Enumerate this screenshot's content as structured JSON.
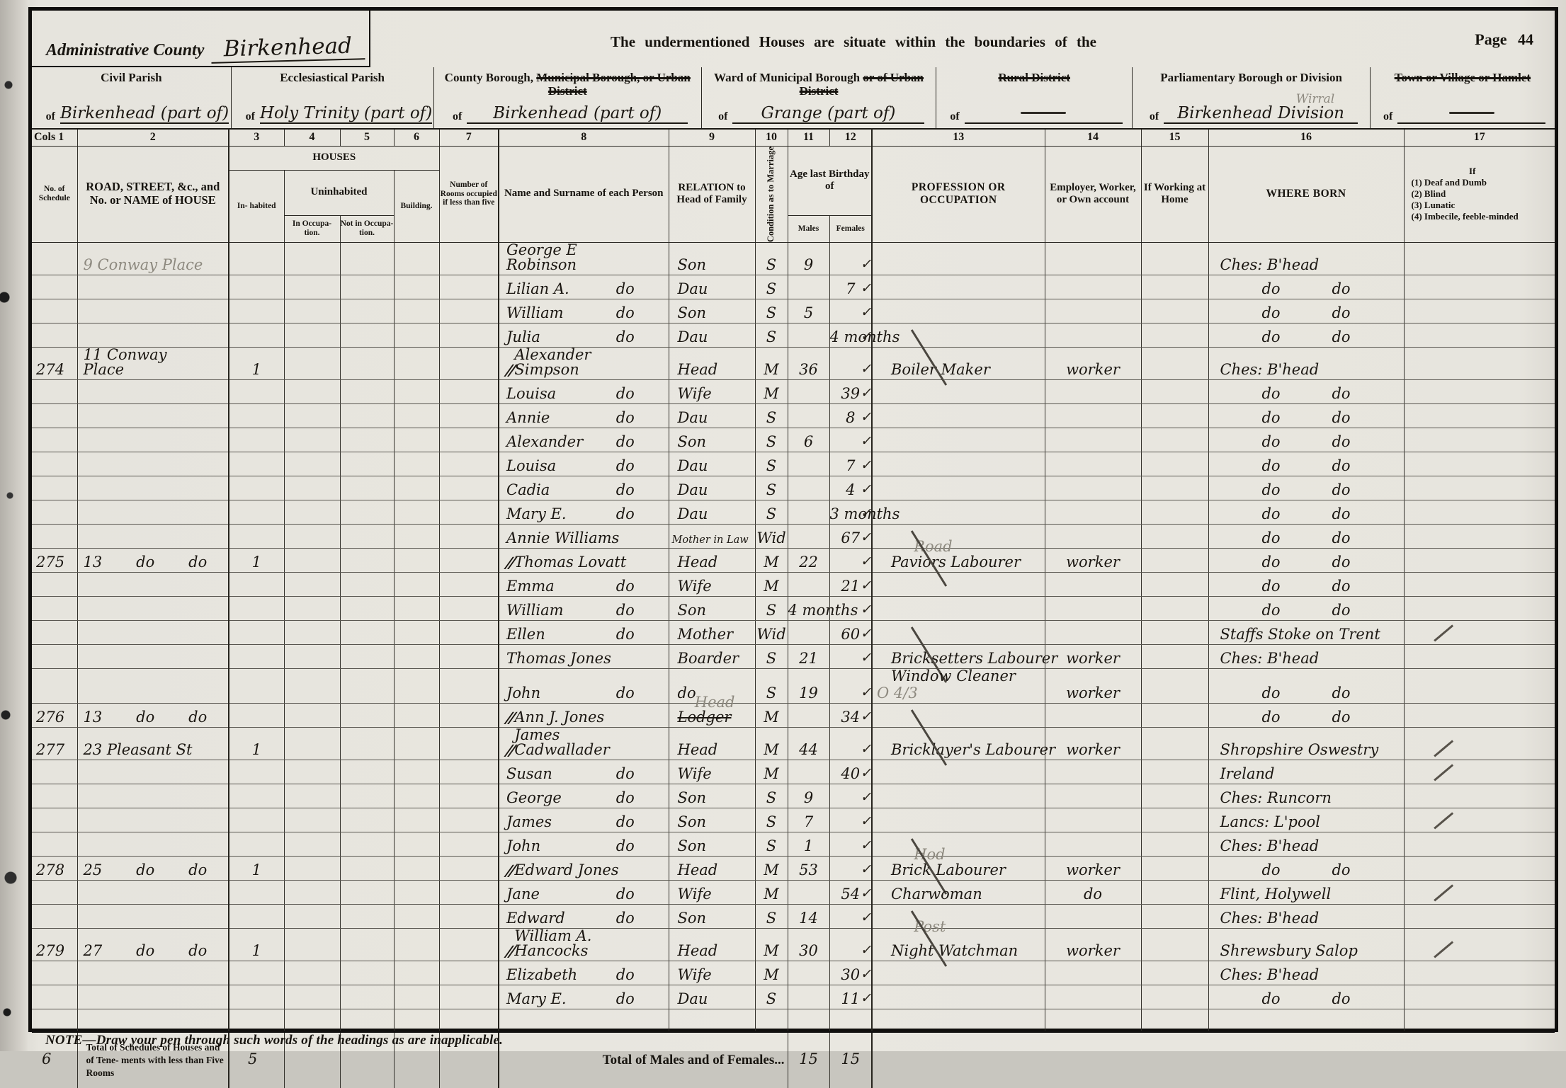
{
  "header": {
    "admin_county_label": "Administrative County",
    "admin_county_value": "Birkenhead",
    "banner": "The undermentioned Houses are situate within the boundaries of the",
    "page_label": "Page 44"
  },
  "districts": [
    {
      "label_parts": [
        {
          "text": "Civil Parish",
          "struck": false
        }
      ],
      "of": "of",
      "value": "Birkenhead (part of)"
    },
    {
      "label_parts": [
        {
          "text": "Ecclesiastical Parish",
          "struck": false
        }
      ],
      "of": "of",
      "value": "Holy Trinity (part of)"
    },
    {
      "label_parts": [
        {
          "text": "County Borough, ",
          "struck": false
        },
        {
          "text": "Municipal Borough, or Urban District",
          "struck": true
        }
      ],
      "of": "of",
      "value": "Birkenhead (part of)"
    },
    {
      "label_parts": [
        {
          "text": "Ward of Municipal Borough ",
          "struck": false
        },
        {
          "text": "or of Urban District",
          "struck": true
        }
      ],
      "of": "of",
      "value": "Grange (part of)"
    },
    {
      "label_parts": [
        {
          "text": "Rural District",
          "struck": true
        }
      ],
      "of": "of",
      "value": ""
    },
    {
      "label_parts": [
        {
          "text": "Parliamentary Borough or Division",
          "struck": false
        }
      ],
      "of": "of",
      "value": "Birkenhead Division",
      "pencil_above": "Wirral"
    },
    {
      "label_parts": [
        {
          "text": "Town or Village or Hamlet",
          "struck": true
        }
      ],
      "of": "of",
      "value": ""
    }
  ],
  "columns": {
    "numbers": [
      "Cols 1",
      "2",
      "3",
      "4",
      "5",
      "6",
      "7",
      "8",
      "9",
      "10",
      "11",
      "12",
      "13",
      "14",
      "15",
      "16",
      "17"
    ],
    "col1": "No. of Schedule",
    "col2": "ROAD, STREET, &c., and No. or NAME of HOUSE",
    "houses_group": "HOUSES",
    "col3": "In- habited",
    "uninhabited_group": "Uninhabited",
    "col4": "In Occupa- tion.",
    "col5": "Not in Occupa- tion.",
    "col6": "Building.",
    "col7": "Number of Rooms occupied if less than five",
    "col8": "Name and Surname of each Person",
    "col9": "RELATION to Head of Family",
    "col10": "Condition as to Marriage",
    "age_group": "Age last Birthday of",
    "col11": "Males",
    "col12": "Females",
    "col13": "PROFESSION OR OCCUPATION",
    "col14": "Employer, Worker, or Own account",
    "col15": "If Working at Home",
    "col16": "WHERE BORN",
    "col17_lines": [
      "If",
      "(1) Deaf and Dumb",
      "(2) Blind",
      "(3) Lunatic",
      "(4) Imbecile, feeble-minded"
    ]
  },
  "rows": [
    {
      "address": [
        "9 Conway Place"
      ],
      "address_pencil": true,
      "name": [
        "George E Robinson"
      ],
      "relation": "Son",
      "condition": "S",
      "male": "9",
      "tick": true,
      "born": [
        "Ches: B'head"
      ]
    },
    {
      "name": [
        "Lilian A.",
        "do"
      ],
      "relation": "Dau",
      "condition": "S",
      "female": "7",
      "tick": true,
      "born": [
        "do",
        "do"
      ]
    },
    {
      "name": [
        "William",
        "do"
      ],
      "relation": "Son",
      "condition": "S",
      "male": "5",
      "tick": true,
      "born": [
        "do",
        "do"
      ]
    },
    {
      "name": [
        "Julia",
        "do"
      ],
      "relation": "Dau",
      "condition": "S",
      "female": "4 months",
      "tick": true,
      "born": [
        "do",
        "do"
      ]
    },
    {
      "schedule": "274",
      "address": [
        "11 Conway Place"
      ],
      "inhabited": "1",
      "mark": true,
      "name": [
        "Alexander Simpson"
      ],
      "relation": "Head",
      "condition": "M",
      "male": "36",
      "tick": true,
      "occupation": "Boiler Maker",
      "occ_crossed": true,
      "employer": "worker",
      "born": [
        "Ches: B'head"
      ]
    },
    {
      "name": [
        "Louisa",
        "do"
      ],
      "relation": "Wife",
      "condition": "M",
      "female": "39",
      "tick": true,
      "born": [
        "do",
        "do"
      ]
    },
    {
      "name": [
        "Annie",
        "do"
      ],
      "relation": "Dau",
      "condition": "S",
      "female": "8",
      "tick": true,
      "born": [
        "do",
        "do"
      ]
    },
    {
      "name": [
        "Alexander",
        "do"
      ],
      "relation": "Son",
      "condition": "S",
      "male": "6",
      "tick": true,
      "born": [
        "do",
        "do"
      ]
    },
    {
      "name": [
        "Louisa",
        "do"
      ],
      "relation": "Dau",
      "condition": "S",
      "female": "7",
      "tick": true,
      "born": [
        "do",
        "do"
      ]
    },
    {
      "name": [
        "Cadia",
        "do"
      ],
      "relation": "Dau",
      "condition": "S",
      "female": "4",
      "tick": true,
      "born": [
        "do",
        "do"
      ]
    },
    {
      "name": [
        "Mary E.",
        "do"
      ],
      "relation": "Dau",
      "condition": "S",
      "female": "3 months",
      "tick": true,
      "born": [
        "do",
        "do"
      ]
    },
    {
      "name": [
        "Annie Williams"
      ],
      "relation": "Mother in Law",
      "condition": "Wid",
      "female": "67",
      "tick": true,
      "born": [
        "do",
        "do"
      ]
    },
    {
      "schedule": "275",
      "address": [
        "13",
        "do",
        "do"
      ],
      "inhabited": "1",
      "mark": true,
      "name": [
        "Thomas Lovatt"
      ],
      "relation": "Head",
      "condition": "M",
      "male": "22",
      "tick": true,
      "occupation": "Paviors Labourer",
      "occ_pencil_above": "Road",
      "occ_crossed": true,
      "employer": "worker",
      "born": [
        "do",
        "do"
      ]
    },
    {
      "name": [
        "Emma",
        "do"
      ],
      "relation": "Wife",
      "condition": "M",
      "female": "21",
      "tick": true,
      "born": [
        "do",
        "do"
      ]
    },
    {
      "name": [
        "William",
        "do"
      ],
      "relation": "Son",
      "condition": "S",
      "male": "4 months",
      "tick": true,
      "born": [
        "do",
        "do"
      ]
    },
    {
      "name": [
        "Ellen",
        "do"
      ],
      "relation": "Mother",
      "condition": "Wid",
      "female": "60",
      "tick": true,
      "born": [
        "Staffs Stoke on Trent"
      ],
      "born_tick": true
    },
    {
      "name": [
        "Thomas Jones"
      ],
      "relation": "Boarder",
      "condition": "S",
      "male": "21",
      "tick": true,
      "occupation": "Bricksetters Labourer",
      "occ_crossed": true,
      "employer": "worker",
      "born": [
        "Ches: B'head"
      ]
    },
    {
      "name": [
        "John",
        "do"
      ],
      "relation": "do",
      "condition": "S",
      "male": "19",
      "tick": true,
      "occupation": "Window Cleaner",
      "occ_pencil_after": "O 4/3",
      "employer": "worker",
      "born": [
        "do",
        "do"
      ]
    },
    {
      "schedule": "276",
      "address": [
        "13",
        "do",
        "do"
      ],
      "mark": true,
      "name": [
        "Ann J. Jones"
      ],
      "relation": "Lodger",
      "relation_struck": true,
      "relation_pencil": "Head",
      "condition": "M",
      "female": "34",
      "tick": true,
      "born": [
        "do",
        "do"
      ]
    },
    {
      "schedule": "277",
      "address": [
        "23 Pleasant St"
      ],
      "inhabited": "1",
      "mark": true,
      "name": [
        "James Cadwallader"
      ],
      "relation": "Head",
      "condition": "M",
      "male": "44",
      "tick": true,
      "occupation": "Bricklayer's Labourer",
      "occ_crossed": true,
      "employer": "worker",
      "born": [
        "Shropshire Oswestry"
      ],
      "born_tick": true
    },
    {
      "name": [
        "Susan",
        "do"
      ],
      "relation": "Wife",
      "condition": "M",
      "female": "40",
      "tick": true,
      "born": [
        "Ireland"
      ],
      "born_tick": true
    },
    {
      "name": [
        "George",
        "do"
      ],
      "relation": "Son",
      "condition": "S",
      "male": "9",
      "tick": true,
      "born": [
        "Ches: Runcorn"
      ]
    },
    {
      "name": [
        "James",
        "do"
      ],
      "relation": "Son",
      "condition": "S",
      "male": "7",
      "tick": true,
      "born": [
        "Lancs: L'pool"
      ],
      "born_tick": true
    },
    {
      "name": [
        "John",
        "do"
      ],
      "relation": "Son",
      "condition": "S",
      "male": "1",
      "tick": true,
      "born": [
        "Ches: B'head"
      ]
    },
    {
      "schedule": "278",
      "address": [
        "25",
        "do",
        "do"
      ],
      "inhabited": "1",
      "mark": true,
      "name": [
        "Edward Jones"
      ],
      "relation": "Head",
      "condition": "M",
      "male": "53",
      "tick": true,
      "occupation": "Brick Labourer",
      "occ_pencil_above": "Hod",
      "occ_crossed": true,
      "employer": "worker",
      "born": [
        "do",
        "do"
      ]
    },
    {
      "name": [
        "Jane",
        "do"
      ],
      "relation": "Wife",
      "condition": "M",
      "female": "54",
      "tick": true,
      "occupation": "Charwoman",
      "employer": "do",
      "born": [
        "Flint, Holywell"
      ],
      "born_tick": true
    },
    {
      "name": [
        "Edward",
        "do"
      ],
      "relation": "Son",
      "condition": "S",
      "male": "14",
      "tick": true,
      "born": [
        "Ches: B'head"
      ]
    },
    {
      "schedule": "279",
      "address": [
        "27",
        "do",
        "do"
      ],
      "inhabited": "1",
      "mark": true,
      "name": [
        "William A. Hancocks"
      ],
      "relation": "Head",
      "condition": "M",
      "male": "30",
      "tick": true,
      "occupation": "Night Watchman",
      "occ_pencil_above": "Post",
      "occ_crossed": true,
      "employer": "worker",
      "born": [
        "Shrewsbury Salop"
      ],
      "born_tick": true
    },
    {
      "name": [
        "Elizabeth",
        "do"
      ],
      "relation": "Wife",
      "condition": "M",
      "female": "30",
      "tick": true,
      "born": [
        "Ches: B'head"
      ]
    },
    {
      "name": [
        "Mary E.",
        "do"
      ],
      "relation": "Dau",
      "condition": "S",
      "female": "11",
      "tick": true,
      "born": [
        "do",
        "do"
      ]
    }
  ],
  "totals": {
    "schedule": "6",
    "label": "Total of Schedules of Houses and of Tene- ments with less than Five Rooms",
    "houses_value": "5",
    "males_females_label": "Total of Males and of Females...",
    "males": "15",
    "females": "15"
  },
  "footnote": "NOTE—Draw your pen through such words of the headings as are inapplicable."
}
